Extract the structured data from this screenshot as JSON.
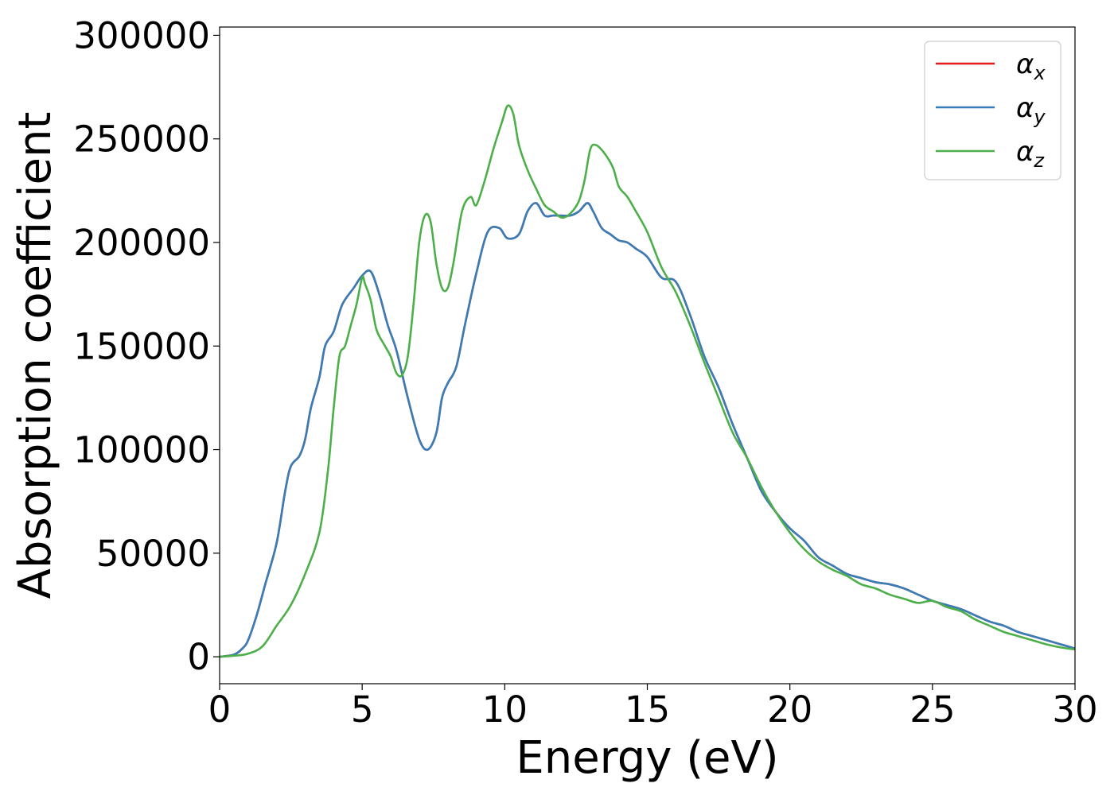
{
  "chart_data": {
    "type": "line",
    "title": "",
    "xlabel": "Energy (eV)",
    "ylabel": "Absorption coefficient",
    "xlim": [
      0,
      30
    ],
    "ylim": [
      -13000,
      304000
    ],
    "xticks": [
      0,
      5,
      10,
      15,
      20,
      25,
      30
    ],
    "xtick_labels": [
      "0",
      "5",
      "10",
      "15",
      "20",
      "25",
      "30"
    ],
    "yticks": [
      0,
      50000,
      100000,
      150000,
      200000,
      250000,
      300000
    ],
    "ytick_labels": [
      "0",
      "50000",
      "100000",
      "150000",
      "200000",
      "250000",
      "300000"
    ],
    "grid": false,
    "legend_position": "top-right",
    "series": [
      {
        "name": "α",
        "name_sub": "x",
        "color": "#e41a1c",
        "x": [
          0,
          0.5,
          0.8,
          1.0,
          1.3,
          1.6,
          2.0,
          2.3,
          2.5,
          2.8,
          3.0,
          3.2,
          3.5,
          3.7,
          4.0,
          4.3,
          4.7,
          5.0,
          5.3,
          5.6,
          5.9,
          6.2,
          6.6,
          7.0,
          7.3,
          7.6,
          7.8,
          8.0,
          8.3,
          8.6,
          9.0,
          9.4,
          9.8,
          10.1,
          10.5,
          10.8,
          11.1,
          11.4,
          11.7,
          12.0,
          12.3,
          12.6,
          12.9,
          13.1,
          13.4,
          13.7,
          14.0,
          14.3,
          14.6,
          15.0,
          15.5,
          16.0,
          16.5,
          17.0,
          17.5,
          18.0,
          18.5,
          19.0,
          19.5,
          20.0,
          20.5,
          21.0,
          21.5,
          22.0,
          22.5,
          23.0,
          23.5,
          24.0,
          24.5,
          25.0,
          25.5,
          26.0,
          26.5,
          27.0,
          27.5,
          28.0,
          28.5,
          29.0,
          29.5,
          30.0
        ],
        "values": [
          0,
          1000,
          4000,
          8000,
          20000,
          35000,
          55000,
          80000,
          92000,
          97000,
          105000,
          120000,
          135000,
          150000,
          157000,
          170000,
          178000,
          184000,
          186000,
          175000,
          160000,
          148000,
          125000,
          105000,
          100000,
          108000,
          125000,
          132000,
          140000,
          160000,
          185000,
          205000,
          207000,
          202000,
          204000,
          215000,
          219000,
          213000,
          213000,
          213000,
          213000,
          215000,
          219000,
          215000,
          207000,
          204000,
          201000,
          200000,
          197000,
          193000,
          183000,
          181000,
          165000,
          145000,
          130000,
          112000,
          96000,
          80000,
          70000,
          62000,
          56000,
          48000,
          44000,
          40000,
          38000,
          36000,
          35000,
          33000,
          30000,
          27000,
          25000,
          23000,
          20000,
          17000,
          15000,
          12000,
          10000,
          8000,
          6000,
          4000
        ]
      },
      {
        "name": "α",
        "name_sub": "y",
        "color": "#377eb8",
        "x": [
          0,
          0.5,
          0.8,
          1.0,
          1.3,
          1.6,
          2.0,
          2.3,
          2.5,
          2.8,
          3.0,
          3.2,
          3.5,
          3.7,
          4.0,
          4.3,
          4.7,
          5.0,
          5.3,
          5.6,
          5.9,
          6.2,
          6.6,
          7.0,
          7.3,
          7.6,
          7.8,
          8.0,
          8.3,
          8.6,
          9.0,
          9.4,
          9.8,
          10.1,
          10.5,
          10.8,
          11.1,
          11.4,
          11.7,
          12.0,
          12.3,
          12.6,
          12.9,
          13.1,
          13.4,
          13.7,
          14.0,
          14.3,
          14.6,
          15.0,
          15.5,
          16.0,
          16.5,
          17.0,
          17.5,
          18.0,
          18.5,
          19.0,
          19.5,
          20.0,
          20.5,
          21.0,
          21.5,
          22.0,
          22.5,
          23.0,
          23.5,
          24.0,
          24.5,
          25.0,
          25.5,
          26.0,
          26.5,
          27.0,
          27.5,
          28.0,
          28.5,
          29.0,
          29.5,
          30.0
        ],
        "values": [
          0,
          1000,
          4000,
          8000,
          20000,
          35000,
          55000,
          80000,
          92000,
          97000,
          105000,
          120000,
          135000,
          150000,
          157000,
          170000,
          178000,
          184000,
          186000,
          175000,
          160000,
          148000,
          125000,
          105000,
          100000,
          108000,
          125000,
          132000,
          140000,
          160000,
          185000,
          205000,
          207000,
          202000,
          204000,
          215000,
          219000,
          213000,
          213000,
          213000,
          213000,
          215000,
          219000,
          215000,
          207000,
          204000,
          201000,
          200000,
          197000,
          193000,
          183000,
          181000,
          165000,
          145000,
          130000,
          112000,
          96000,
          80000,
          70000,
          62000,
          56000,
          48000,
          44000,
          40000,
          38000,
          36000,
          35000,
          33000,
          30000,
          27000,
          25000,
          23000,
          20000,
          17000,
          15000,
          12000,
          10000,
          8000,
          6000,
          4000
        ]
      },
      {
        "name": "α",
        "name_sub": "z",
        "color": "#4daf4a",
        "x": [
          0,
          0.5,
          1.0,
          1.5,
          2.0,
          2.5,
          3.0,
          3.5,
          3.8,
          4.0,
          4.2,
          4.4,
          4.6,
          4.8,
          5.0,
          5.1,
          5.3,
          5.5,
          5.8,
          6.0,
          6.2,
          6.4,
          6.6,
          6.8,
          7.0,
          7.2,
          7.4,
          7.6,
          7.8,
          8.0,
          8.2,
          8.5,
          8.8,
          9.0,
          9.3,
          9.6,
          9.9,
          10.1,
          10.3,
          10.5,
          10.8,
          11.1,
          11.4,
          11.7,
          12.0,
          12.3,
          12.6,
          12.8,
          13.0,
          13.2,
          13.5,
          13.8,
          14.0,
          14.3,
          14.6,
          15.0,
          15.5,
          16.0,
          16.5,
          17.0,
          17.5,
          18.0,
          18.5,
          19.0,
          19.5,
          20.0,
          20.5,
          21.0,
          21.5,
          22.0,
          22.5,
          23.0,
          23.5,
          24.0,
          24.5,
          25.0,
          25.5,
          26.0,
          26.5,
          27.0,
          27.5,
          28.0,
          28.5,
          29.0,
          29.5,
          30.0
        ],
        "values": [
          0,
          500,
          1500,
          5000,
          15000,
          25000,
          40000,
          60000,
          90000,
          120000,
          145000,
          150000,
          160000,
          170000,
          183000,
          180000,
          172000,
          158000,
          150000,
          145000,
          137000,
          136000,
          145000,
          170000,
          200000,
          213000,
          210000,
          190000,
          178000,
          178000,
          190000,
          215000,
          222000,
          218000,
          230000,
          245000,
          258000,
          266000,
          262000,
          247000,
          235000,
          226000,
          218000,
          215000,
          212000,
          214000,
          220000,
          230000,
          245000,
          247000,
          243000,
          236000,
          227000,
          222000,
          215000,
          205000,
          188000,
          176000,
          160000,
          142000,
          125000,
          108000,
          96000,
          82000,
          70000,
          60000,
          52000,
          46000,
          42000,
          39000,
          35000,
          33000,
          30000,
          28000,
          26000,
          27000,
          24000,
          22000,
          18000,
          15000,
          12000,
          10000,
          8000,
          6000,
          4500,
          3500
        ]
      }
    ]
  }
}
